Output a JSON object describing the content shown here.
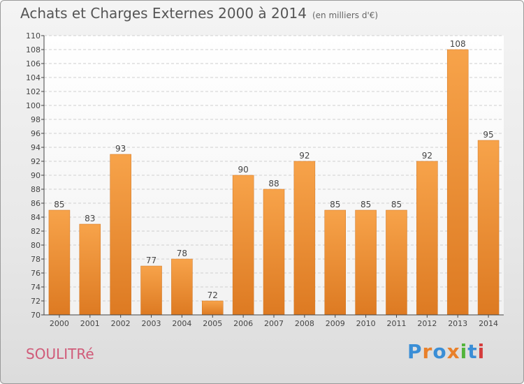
{
  "title": "Achats et Charges Externes 2000 à 2014",
  "unit_note": "(en milliers d'€)",
  "commune": "SOULITRé",
  "brand": {
    "text": "Proxiti",
    "colors": [
      "#3a8ed6",
      "#e9802a",
      "#3a8ed6",
      "#e9802a",
      "#53b43b",
      "#3a8ed6",
      "#d43c3c"
    ]
  },
  "chart_data": {
    "type": "bar",
    "categories": [
      "2000",
      "2001",
      "2002",
      "2003",
      "2004",
      "2005",
      "2006",
      "2007",
      "2008",
      "2009",
      "2010",
      "2011",
      "2012",
      "2013",
      "2014"
    ],
    "values": [
      85,
      83,
      93,
      77,
      78,
      72,
      90,
      88,
      92,
      85,
      85,
      85,
      92,
      108,
      95
    ],
    "ylim": [
      70,
      110
    ],
    "yticks": [
      70,
      72,
      74,
      76,
      78,
      80,
      82,
      84,
      86,
      88,
      90,
      92,
      94,
      96,
      98,
      100,
      102,
      104,
      106,
      108,
      110
    ],
    "grid": true,
    "bar_color": "#f29a3e"
  }
}
